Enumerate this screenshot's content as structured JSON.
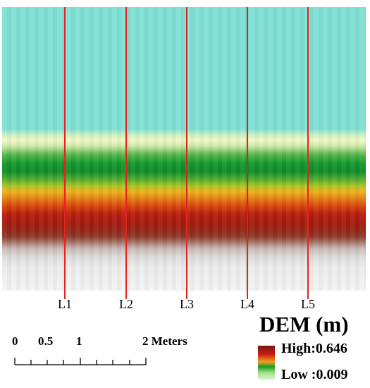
{
  "legend": {
    "title": "DEM (m)",
    "high_label": "High:0.646",
    "low_label": "Low :0.009",
    "ramp_colors": [
      "#7a1a10",
      "#c81a12",
      "#f0a020",
      "#1a9a2a",
      "#a8e08a",
      "#d8f4d4"
    ]
  },
  "transects": [
    {
      "label": "L1",
      "color": "#e8231f"
    },
    {
      "label": "L2",
      "color": "#e8231f"
    },
    {
      "label": "L3",
      "color": "#d4281e"
    },
    {
      "label": "L4",
      "color": "#d4281e"
    },
    {
      "label": "L5",
      "color": "#e8231f"
    }
  ],
  "scale_bar": {
    "labels": [
      "0",
      "0.5",
      "1",
      "2 Meters"
    ]
  },
  "raster_colors": {
    "water": "#7fe0d4",
    "vegetation": "#0f8b28",
    "high_elevation": "#a4190e",
    "bare_ground": "#f3f3f3"
  }
}
